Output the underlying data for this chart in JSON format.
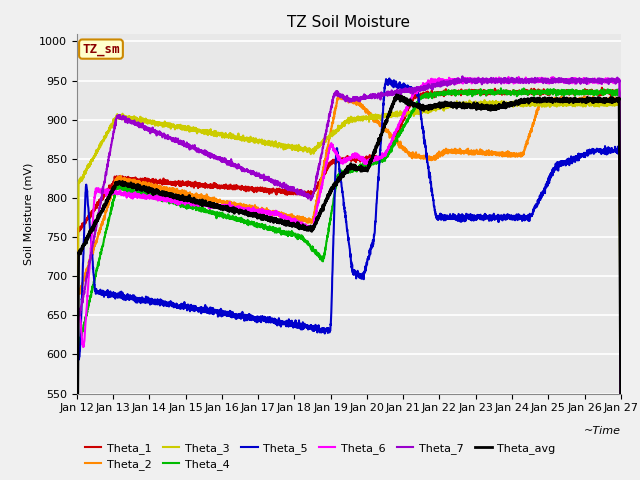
{
  "title": "TZ Soil Moisture",
  "xlabel": "~Time",
  "ylabel": "Soil Moisture (mV)",
  "ylim": [
    550,
    1010
  ],
  "yticks": [
    550,
    600,
    650,
    700,
    750,
    800,
    850,
    900,
    950,
    1000
  ],
  "legend_label": "TZ_sm",
  "series": {
    "Theta_1": {
      "color": "#cc0000",
      "lw": 1.5
    },
    "Theta_2": {
      "color": "#ff8800",
      "lw": 1.5
    },
    "Theta_3": {
      "color": "#cccc00",
      "lw": 1.5
    },
    "Theta_4": {
      "color": "#00bb00",
      "lw": 1.5
    },
    "Theta_5": {
      "color": "#0000cc",
      "lw": 1.5
    },
    "Theta_6": {
      "color": "#ff00ff",
      "lw": 1.5
    },
    "Theta_7": {
      "color": "#9900cc",
      "lw": 1.5
    },
    "Theta_avg": {
      "color": "#000000",
      "lw": 2.0
    }
  },
  "bg_color": "#e8e8e8",
  "fig_bg": "#f0f0f0",
  "grid_color": "#ffffff",
  "title_fontsize": 11,
  "axis_label_fontsize": 8,
  "tick_fontsize": 8,
  "legend_fontsize": 8
}
